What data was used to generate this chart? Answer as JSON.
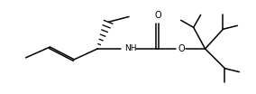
{
  "bg_color": "#ffffff",
  "line_color": "#000000",
  "lw": 1.1,
  "figsize": [
    2.84,
    1.04
  ],
  "dpi": 100,
  "xlim": [
    0,
    284
  ],
  "ylim": [
    0,
    104
  ]
}
